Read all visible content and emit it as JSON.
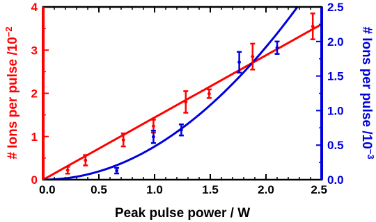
{
  "chart_data": {
    "type": "scatter",
    "xlabel": "Peak pulse power / W",
    "ylabel_left": "# Ions per pulse /10",
    "ylabel_left_exp": "−2",
    "ylabel_right": "# Ions per pulse /10",
    "ylabel_right_exp": "−3",
    "xlim": [
      0,
      2.5
    ],
    "ylim_left": [
      0,
      4
    ],
    "ylim_right": [
      0,
      2.5
    ],
    "x_ticks": [
      "0.0",
      "0.5",
      "1.0",
      "1.5",
      "2.0",
      "2.5"
    ],
    "y_left_ticks": [
      "0",
      "1",
      "2",
      "3",
      "4"
    ],
    "y_right_ticks": [
      "0.0",
      "0.5",
      "1.0",
      "1.5",
      "2.0",
      "2.5"
    ],
    "grid": false,
    "colors": {
      "left": "#ff0000",
      "right": "#0000dd",
      "axis": "#000000"
    },
    "series": [
      {
        "axis": "left",
        "color": "#ff0000",
        "points": [
          {
            "x": 0.22,
            "y": 0.22,
            "err": 0.08
          },
          {
            "x": 0.38,
            "y": 0.45,
            "err": 0.12
          },
          {
            "x": 0.72,
            "y": 0.92,
            "err": 0.15
          },
          {
            "x": 0.99,
            "y": 1.24,
            "err": 0.15
          },
          {
            "x": 1.28,
            "y": 1.8,
            "err": 0.25
          },
          {
            "x": 1.49,
            "y": 1.99,
            "err": 0.1
          },
          {
            "x": 1.88,
            "y": 2.85,
            "err": 0.3
          },
          {
            "x": 2.42,
            "y": 3.55,
            "err": 0.3
          }
        ],
        "fit": {
          "model": "linear",
          "slope": 1.44,
          "x_range": [
            0,
            2.5
          ]
        }
      },
      {
        "axis": "right",
        "color": "#0000dd",
        "points": [
          {
            "x": 0.66,
            "y": 0.13,
            "err": 0.04
          },
          {
            "x": 0.99,
            "y": 0.62,
            "err": 0.09
          },
          {
            "x": 1.24,
            "y": 0.72,
            "err": 0.08
          },
          {
            "x": 1.76,
            "y": 1.7,
            "err": 0.15
          },
          {
            "x": 2.1,
            "y": 1.91,
            "err": 0.09
          }
        ],
        "fit": {
          "model": "quadratic",
          "coef": 0.48,
          "x_range": [
            0,
            2.5
          ]
        }
      }
    ]
  }
}
